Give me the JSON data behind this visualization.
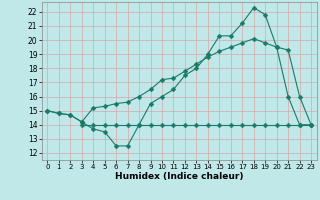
{
  "title": "",
  "xlabel": "Humidex (Indice chaleur)",
  "ylabel": "",
  "background_color": "#c0e8e8",
  "grid_color": "#d8a8a8",
  "line_color": "#1a7a6a",
  "xlim": [
    -0.5,
    23.5
  ],
  "ylim": [
    11.5,
    22.7
  ],
  "xticks": [
    0,
    1,
    2,
    3,
    4,
    5,
    6,
    7,
    8,
    9,
    10,
    11,
    12,
    13,
    14,
    15,
    16,
    17,
    18,
    19,
    20,
    21,
    22,
    23
  ],
  "yticks": [
    12,
    13,
    14,
    15,
    16,
    17,
    18,
    19,
    20,
    21,
    22
  ],
  "line1_x": [
    0,
    1,
    2,
    3,
    4,
    5,
    6,
    7,
    8,
    9,
    10,
    11,
    12,
    13,
    14,
    15,
    16,
    17,
    18,
    19,
    20,
    21,
    22,
    23
  ],
  "line1_y": [
    15.0,
    14.8,
    14.7,
    14.2,
    13.7,
    13.5,
    12.5,
    12.5,
    14.0,
    15.5,
    16.0,
    16.5,
    17.5,
    18.0,
    19.0,
    20.3,
    20.3,
    21.2,
    22.3,
    21.8,
    19.5,
    16.0,
    14.0,
    14.0
  ],
  "line2_x": [
    0,
    1,
    2,
    3,
    4,
    5,
    6,
    7,
    8,
    9,
    10,
    11,
    12,
    13,
    14,
    15,
    16,
    17,
    18,
    19,
    20,
    21,
    22,
    23
  ],
  "line2_y": [
    15.0,
    14.8,
    14.7,
    14.2,
    15.2,
    15.3,
    15.5,
    15.6,
    16.0,
    16.5,
    17.2,
    17.3,
    17.8,
    18.3,
    18.8,
    19.2,
    19.5,
    19.8,
    20.1,
    19.8,
    19.5,
    19.3,
    16.0,
    14.0
  ],
  "line3_x": [
    3,
    4,
    5,
    6,
    7,
    8,
    9,
    10,
    11,
    12,
    13,
    14,
    15,
    16,
    17,
    18,
    19,
    20,
    21,
    22,
    23
  ],
  "line3_y": [
    14.0,
    14.0,
    14.0,
    14.0,
    14.0,
    14.0,
    14.0,
    14.0,
    14.0,
    14.0,
    14.0,
    14.0,
    14.0,
    14.0,
    14.0,
    14.0,
    14.0,
    14.0,
    14.0,
    14.0,
    14.0
  ]
}
